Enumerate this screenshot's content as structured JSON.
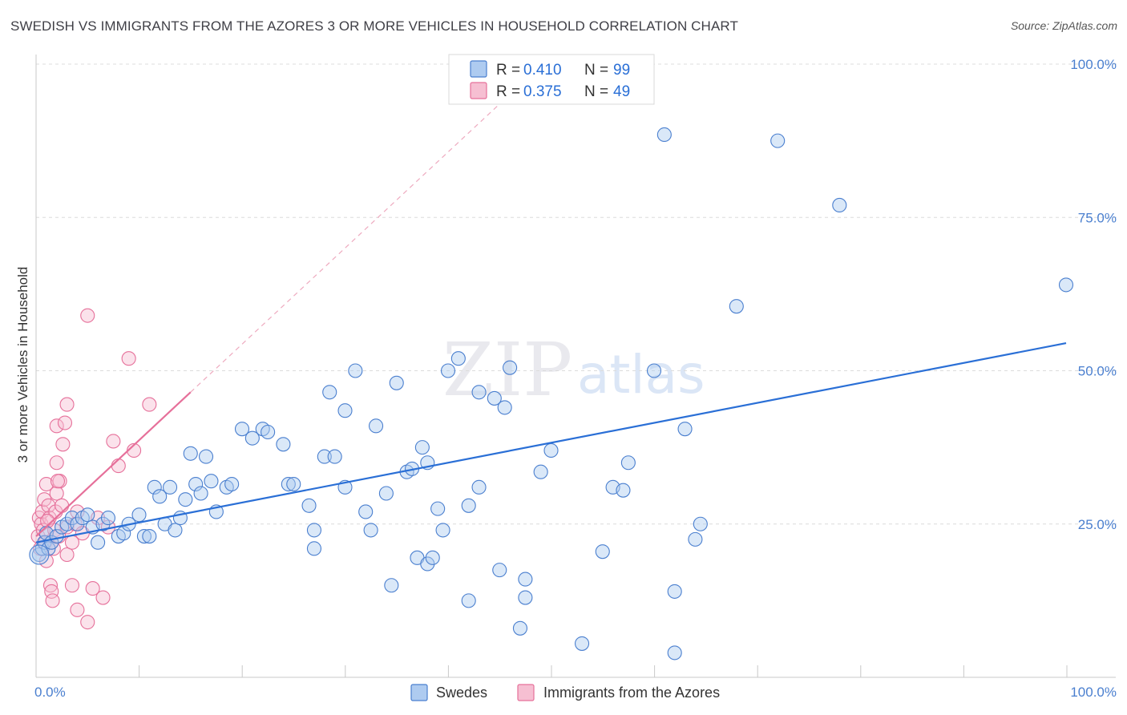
{
  "title": "SWEDISH VS IMMIGRANTS FROM THE AZORES 3 OR MORE VEHICLES IN HOUSEHOLD CORRELATION CHART",
  "source": "Source: ZipAtlas.com",
  "watermark": {
    "zip": "ZIP",
    "atlas": "atlas"
  },
  "colors": {
    "blue": "#4a7fcf",
    "blue_fill": "#aecbf0",
    "blue_line": "#2a6fd6",
    "pink": "#e6709a",
    "pink_fill": "#f6bfd2"
  },
  "legend": {
    "r_label": "R =",
    "n_label": "N =",
    "swedes_r": "0.410",
    "swedes_n": "99",
    "azores_r": "0.375",
    "azores_n": "49"
  },
  "chart_data": {
    "type": "scatter",
    "title": "SWEDISH VS IMMIGRANTS FROM THE AZORES 3 OR MORE VEHICLES IN HOUSEHOLD CORRELATION CHART",
    "xlabel": "",
    "ylabel": "3 or more Vehicles in Household",
    "xlim": [
      0,
      100
    ],
    "ylim": [
      0,
      105
    ],
    "x_tick_labels": [
      {
        "v": 0,
        "label": "0.0%"
      },
      {
        "v": 100,
        "label": "100.0%"
      }
    ],
    "y_tick_labels": [
      {
        "v": 25,
        "label": "25.0%"
      },
      {
        "v": 50,
        "label": "50.0%"
      },
      {
        "v": 75,
        "label": "75.0%"
      },
      {
        "v": 100,
        "label": "100.0%"
      }
    ],
    "series": [
      {
        "name": "Swedes",
        "color": "#4a7fcf",
        "regression": {
          "x": [
            0,
            100
          ],
          "y": [
            22.0,
            54.5
          ]
        },
        "points": [
          [
            0.3,
            20
          ],
          [
            0.6,
            21
          ],
          [
            0.8,
            22
          ],
          [
            1,
            23.5
          ],
          [
            1.2,
            21
          ],
          [
            1.5,
            22
          ],
          [
            2,
            23
          ],
          [
            2.5,
            24.5
          ],
          [
            3,
            25
          ],
          [
            3.5,
            26
          ],
          [
            4,
            25
          ],
          [
            4.5,
            26
          ],
          [
            5,
            26.5
          ],
          [
            5.5,
            24.5
          ],
          [
            6,
            22
          ],
          [
            6.5,
            25
          ],
          [
            7,
            26
          ],
          [
            8,
            23
          ],
          [
            8.5,
            23.5
          ],
          [
            9,
            25
          ],
          [
            10,
            26.5
          ],
          [
            10.5,
            23
          ],
          [
            11,
            23
          ],
          [
            11.5,
            31
          ],
          [
            12,
            29.5
          ],
          [
            12.5,
            25
          ],
          [
            13,
            31
          ],
          [
            13.5,
            24
          ],
          [
            14,
            26
          ],
          [
            14.5,
            29
          ],
          [
            15,
            36.5
          ],
          [
            15.5,
            31.5
          ],
          [
            16,
            30
          ],
          [
            16.5,
            36
          ],
          [
            17,
            32
          ],
          [
            17.5,
            27
          ],
          [
            18.5,
            31
          ],
          [
            19,
            31.5
          ],
          [
            20,
            40.5
          ],
          [
            21,
            39
          ],
          [
            22,
            40.5
          ],
          [
            22.5,
            40
          ],
          [
            24,
            38
          ],
          [
            24.5,
            31.5
          ],
          [
            25,
            31.5
          ],
          [
            26.5,
            28
          ],
          [
            27,
            24
          ],
          [
            27,
            21
          ],
          [
            28,
            36
          ],
          [
            28.5,
            46.5
          ],
          [
            29,
            36
          ],
          [
            30,
            31
          ],
          [
            30,
            43.5
          ],
          [
            31,
            50
          ],
          [
            32,
            27
          ],
          [
            32.5,
            24
          ],
          [
            33,
            41
          ],
          [
            34,
            30
          ],
          [
            34.5,
            15
          ],
          [
            35,
            48
          ],
          [
            36,
            33.5
          ],
          [
            36.5,
            34
          ],
          [
            37,
            19.5
          ],
          [
            37.5,
            37.5
          ],
          [
            38,
            35
          ],
          [
            38,
            18.5
          ],
          [
            38.5,
            19.5
          ],
          [
            39,
            27.5
          ],
          [
            39.5,
            24
          ],
          [
            40,
            50
          ],
          [
            41,
            52
          ],
          [
            42,
            12.5
          ],
          [
            42,
            28
          ],
          [
            43,
            31
          ],
          [
            43,
            46.5
          ],
          [
            44.5,
            45.5
          ],
          [
            45.5,
            44
          ],
          [
            45,
            17.5
          ],
          [
            46,
            50.5
          ],
          [
            47,
            8
          ],
          [
            47.5,
            16
          ],
          [
            47.5,
            13
          ],
          [
            49,
            33.5
          ],
          [
            50,
            37
          ],
          [
            53,
            5.5
          ],
          [
            55,
            20.5
          ],
          [
            56,
            31
          ],
          [
            57,
            30.5
          ],
          [
            57.5,
            35
          ],
          [
            60,
            50
          ],
          [
            61,
            88.5
          ],
          [
            62,
            4
          ],
          [
            62,
            14
          ],
          [
            63,
            40.5
          ],
          [
            64,
            22.5
          ],
          [
            64.5,
            25
          ],
          [
            68,
            60.5
          ],
          [
            72,
            87.5
          ],
          [
            78,
            77
          ],
          [
            100,
            64
          ]
        ]
      },
      {
        "name": "Immigrants from the Azores",
        "color": "#e6709a",
        "regression": {
          "x": [
            0,
            15
          ],
          "y": [
            23,
            46.5
          ]
        },
        "regression_extension": {
          "x": [
            15,
            45
          ],
          "y": [
            46.5,
            93.5
          ]
        },
        "points": [
          [
            0.2,
            23
          ],
          [
            0.3,
            26
          ],
          [
            0.4,
            21
          ],
          [
            0.5,
            25
          ],
          [
            0.6,
            27
          ],
          [
            0.7,
            24
          ],
          [
            0.8,
            29
          ],
          [
            0.9,
            22
          ],
          [
            1,
            31.5
          ],
          [
            1,
            19
          ],
          [
            1.2,
            28
          ],
          [
            1.3,
            26
          ],
          [
            1.4,
            15
          ],
          [
            1.5,
            14
          ],
          [
            1.5,
            22
          ],
          [
            1.6,
            12.5
          ],
          [
            1.7,
            21
          ],
          [
            1.8,
            24
          ],
          [
            1.9,
            27
          ],
          [
            2,
            30
          ],
          [
            2,
            35
          ],
          [
            2,
            41
          ],
          [
            2.2,
            23
          ],
          [
            2.3,
            32
          ],
          [
            2.5,
            28
          ],
          [
            2.6,
            38
          ],
          [
            2.8,
            41.5
          ],
          [
            3,
            24.5
          ],
          [
            3,
            20
          ],
          [
            3,
            44.5
          ],
          [
            3.5,
            22
          ],
          [
            3.5,
            15
          ],
          [
            3.8,
            25
          ],
          [
            4,
            27
          ],
          [
            4,
            11
          ],
          [
            4.5,
            23.5
          ],
          [
            5,
            9
          ],
          [
            5,
            59
          ],
          [
            5.5,
            14.5
          ],
          [
            6,
            26
          ],
          [
            6.5,
            13
          ],
          [
            7,
            24.5
          ],
          [
            7.5,
            38.5
          ],
          [
            8,
            34.5
          ],
          [
            9,
            52
          ],
          [
            9.5,
            37
          ],
          [
            11,
            44.5
          ],
          [
            2.1,
            32
          ],
          [
            1.1,
            25.5
          ]
        ]
      }
    ]
  },
  "bottom_legend": {
    "swedes": "Swedes",
    "azores": "Immigrants from the Azores"
  }
}
